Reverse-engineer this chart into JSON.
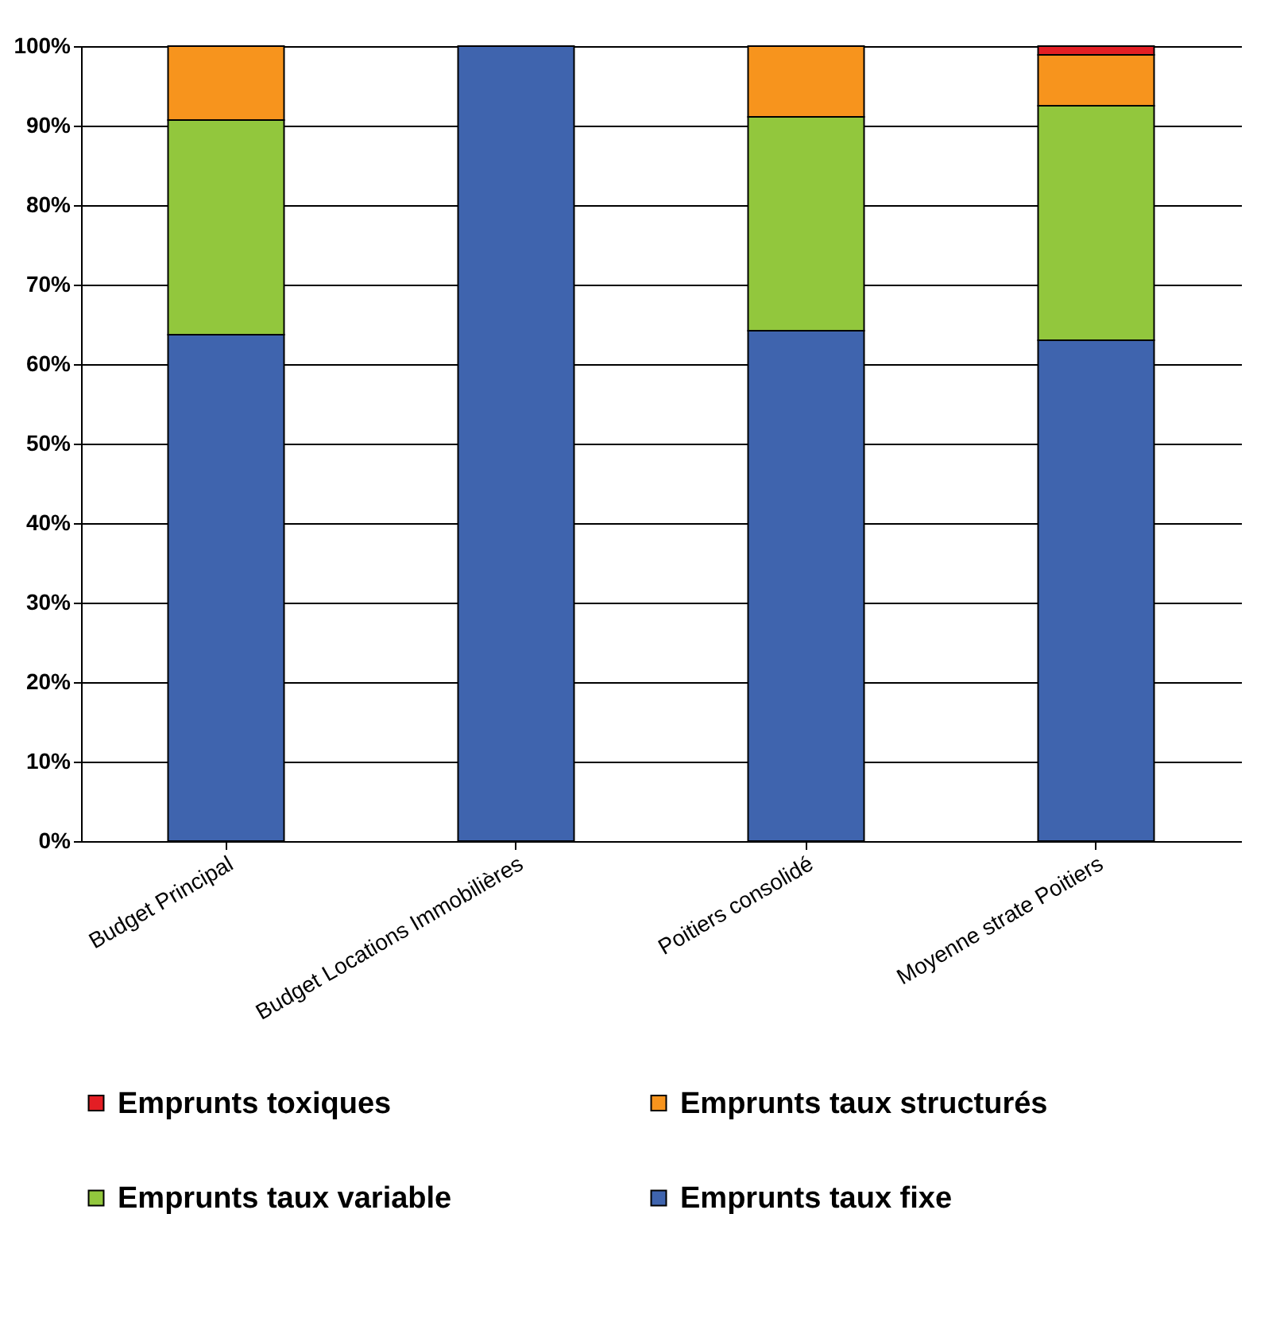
{
  "chart_data": {
    "type": "bar",
    "stacked": true,
    "categories": [
      "Budget Principal",
      "Budget Locations Immobilières",
      "Poitiers consolidé",
      "Moyenne strate Poitiers"
    ],
    "series": [
      {
        "name": "Emprunts taux fixe",
        "color": "#3f64ae",
        "values": [
          63.7,
          100,
          64.2,
          63.0
        ]
      },
      {
        "name": "Emprunts taux variable",
        "color": "#92c73d",
        "values": [
          27.0,
          0,
          26.9,
          29.5
        ]
      },
      {
        "name": "Emprunts taux structurés",
        "color": "#f7941d",
        "values": [
          9.3,
          0,
          8.9,
          6.4
        ]
      },
      {
        "name": "Emprunts toxiques",
        "color": "#e31e24",
        "values": [
          0,
          0,
          0,
          1.1
        ]
      }
    ],
    "ylim": [
      0,
      100
    ],
    "yticks": [
      {
        "value": 0,
        "label": "0%"
      },
      {
        "value": 10,
        "label": "10%"
      },
      {
        "value": 20,
        "label": "20%"
      },
      {
        "value": 30,
        "label": "30%"
      },
      {
        "value": 40,
        "label": "40%"
      },
      {
        "value": 50,
        "label": "50%"
      },
      {
        "value": 60,
        "label": "60%"
      },
      {
        "value": 70,
        "label": "70%"
      },
      {
        "value": 80,
        "label": "80%"
      },
      {
        "value": 90,
        "label": "90%"
      },
      {
        "value": 100,
        "label": "100%"
      }
    ],
    "grid": "y",
    "legend": "bottom"
  }
}
